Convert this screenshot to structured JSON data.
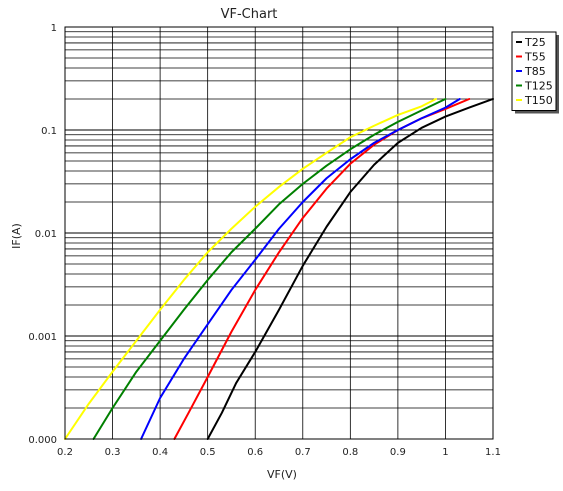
{
  "chart_data": {
    "type": "line",
    "title": "VF-Chart",
    "xlabel": "VF(V)",
    "ylabel": "IF(A)",
    "xlim": [
      0.2,
      1.1
    ],
    "x_ticks": [
      "0.2",
      "0.3",
      "0.4",
      "0.5",
      "0.6",
      "0.7",
      "0.8",
      "0.9",
      "1",
      "1.1"
    ],
    "y_scale": "log",
    "ylim": [
      0.0001,
      1
    ],
    "y_ticks": [
      {
        "value": 0.0001,
        "label": "0.000"
      },
      {
        "value": 0.001,
        "label": "0.001"
      },
      {
        "value": 0.01,
        "label": "0.01"
      },
      {
        "value": 0.1,
        "label": "0.1"
      },
      {
        "value": 1,
        "label": "1"
      }
    ],
    "grid": true,
    "legend_position": "outside-top-right",
    "series": [
      {
        "name": "T25",
        "color": "#000000",
        "points": [
          [
            0.5,
            0.0001
          ],
          [
            0.53,
            0.00018
          ],
          [
            0.56,
            0.00035
          ],
          [
            0.6,
            0.0007
          ],
          [
            0.65,
            0.0018
          ],
          [
            0.7,
            0.0048
          ],
          [
            0.75,
            0.0115
          ],
          [
            0.8,
            0.025
          ],
          [
            0.85,
            0.046
          ],
          [
            0.9,
            0.075
          ],
          [
            0.95,
            0.105
          ],
          [
            1.0,
            0.135
          ],
          [
            1.05,
            0.165
          ],
          [
            1.1,
            0.2
          ]
        ]
      },
      {
        "name": "T55",
        "color": "#ff0000",
        "points": [
          [
            0.43,
            0.0001
          ],
          [
            0.46,
            0.00018
          ],
          [
            0.5,
            0.0004
          ],
          [
            0.55,
            0.0011
          ],
          [
            0.6,
            0.0028
          ],
          [
            0.65,
            0.0065
          ],
          [
            0.7,
            0.014
          ],
          [
            0.75,
            0.027
          ],
          [
            0.8,
            0.047
          ],
          [
            0.85,
            0.072
          ],
          [
            0.9,
            0.1
          ],
          [
            0.95,
            0.13
          ],
          [
            1.0,
            0.16
          ],
          [
            1.05,
            0.2
          ]
        ]
      },
      {
        "name": "T85",
        "color": "#0000ff",
        "points": [
          [
            0.36,
            0.0001
          ],
          [
            0.4,
            0.00025
          ],
          [
            0.45,
            0.0006
          ],
          [
            0.5,
            0.0013
          ],
          [
            0.55,
            0.0028
          ],
          [
            0.6,
            0.0055
          ],
          [
            0.65,
            0.011
          ],
          [
            0.7,
            0.02
          ],
          [
            0.75,
            0.034
          ],
          [
            0.8,
            0.052
          ],
          [
            0.85,
            0.075
          ],
          [
            0.9,
            0.1
          ],
          [
            0.95,
            0.13
          ],
          [
            1.0,
            0.165
          ],
          [
            1.03,
            0.2
          ]
        ]
      },
      {
        "name": "T125",
        "color": "#008000",
        "points": [
          [
            0.26,
            0.0001
          ],
          [
            0.3,
            0.0002
          ],
          [
            0.35,
            0.00045
          ],
          [
            0.4,
            0.0009
          ],
          [
            0.45,
            0.0018
          ],
          [
            0.5,
            0.0035
          ],
          [
            0.55,
            0.0065
          ],
          [
            0.6,
            0.011
          ],
          [
            0.65,
            0.019
          ],
          [
            0.7,
            0.03
          ],
          [
            0.75,
            0.045
          ],
          [
            0.8,
            0.065
          ],
          [
            0.85,
            0.09
          ],
          [
            0.9,
            0.12
          ],
          [
            0.95,
            0.155
          ],
          [
            1.0,
            0.2
          ]
        ]
      },
      {
        "name": "T150",
        "color": "#ffff00",
        "points": [
          [
            0.2,
            0.0001
          ],
          [
            0.25,
            0.00022
          ],
          [
            0.3,
            0.00045
          ],
          [
            0.35,
            0.0009
          ],
          [
            0.4,
            0.0018
          ],
          [
            0.45,
            0.0035
          ],
          [
            0.5,
            0.0065
          ],
          [
            0.55,
            0.011
          ],
          [
            0.6,
            0.018
          ],
          [
            0.65,
            0.028
          ],
          [
            0.7,
            0.042
          ],
          [
            0.75,
            0.06
          ],
          [
            0.8,
            0.085
          ],
          [
            0.85,
            0.11
          ],
          [
            0.9,
            0.14
          ],
          [
            0.95,
            0.17
          ],
          [
            0.98,
            0.2
          ]
        ]
      }
    ]
  }
}
